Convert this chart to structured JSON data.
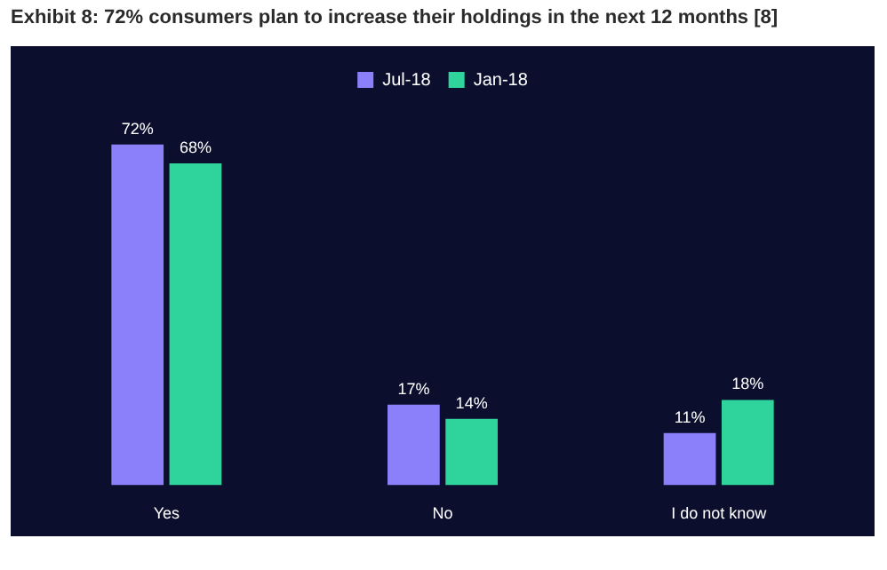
{
  "chart_data": {
    "type": "bar",
    "title": "Exhibit 8: 72% consumers  plan to increase their holdings in the next 12 months [8]",
    "categories": [
      "Yes",
      "No",
      "I do not know"
    ],
    "series": [
      {
        "name": "Jul-18",
        "color": "#8b80f9",
        "values": [
          72,
          17,
          11
        ],
        "value_labels": [
          "72%",
          "17%",
          "11%"
        ]
      },
      {
        "name": "Jan-18",
        "color": "#2fd39c",
        "values": [
          68,
          14,
          18
        ],
        "value_labels": [
          "68%",
          "14%",
          "18%"
        ]
      }
    ],
    "legend": "top"
  }
}
